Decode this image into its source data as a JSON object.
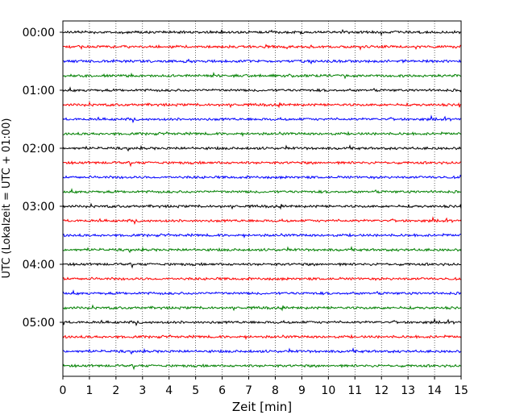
{
  "chart_data": {
    "type": "line",
    "title": "",
    "xlabel": "Zeit  [min]",
    "ylabel": "UTC (Lokalzeit = UTC + 01:00)",
    "xlim": [
      0,
      15
    ],
    "x_ticks": [
      "0",
      "1",
      "2",
      "3",
      "4",
      "5",
      "6",
      "7",
      "8",
      "9",
      "10",
      "11",
      "12",
      "13",
      "14",
      "15"
    ],
    "y_tick_labels": [
      "00:00",
      "01:00",
      "02:00",
      "03:00",
      "04:00",
      "05:00"
    ],
    "grid": "vertical dotted at each minute",
    "trace_interval_minutes": 15,
    "trace_start_times": [
      "00:00",
      "00:15",
      "00:30",
      "00:45",
      "01:00",
      "01:15",
      "01:30",
      "01:45",
      "02:00",
      "02:15",
      "02:30",
      "02:45",
      "03:00",
      "03:15",
      "03:30",
      "03:45",
      "04:00",
      "04:15",
      "04:30",
      "04:45",
      "05:00",
      "05:15",
      "05:30",
      "05:45"
    ],
    "trace_colors": [
      "#000000",
      "#ff0000",
      "#0000ff",
      "#008000"
    ],
    "legend": "none"
  }
}
